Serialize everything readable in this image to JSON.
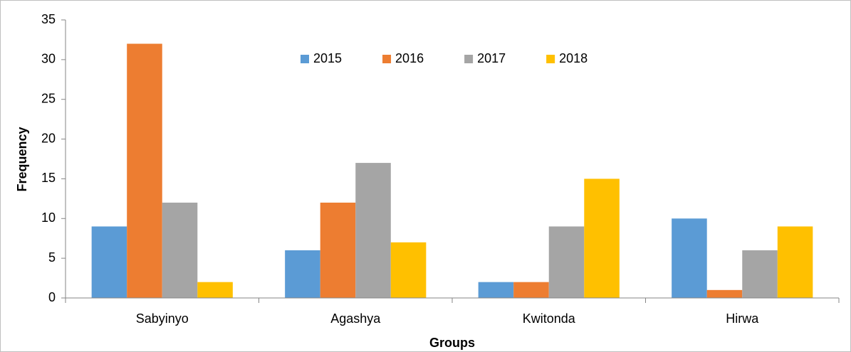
{
  "chart_data": {
    "type": "bar",
    "x_label": "Groups",
    "y_label": "Frequency",
    "categories": [
      "Sabyinyo",
      "Agashya",
      "Kwitonda",
      "Hirwa"
    ],
    "series": [
      {
        "name": "2015",
        "color": "#5b9bd5",
        "values": [
          9,
          6,
          2,
          10
        ]
      },
      {
        "name": "2016",
        "color": "#ed7d31",
        "values": [
          32,
          12,
          2,
          1
        ]
      },
      {
        "name": "2017",
        "color": "#a5a5a5",
        "values": [
          12,
          17,
          9,
          6
        ]
      },
      {
        "name": "2018",
        "color": "#ffc000",
        "values": [
          2,
          7,
          15,
          9
        ]
      }
    ],
    "ylim": [
      0,
      35
    ],
    "yticks": [
      0,
      5,
      10,
      15,
      20,
      25,
      30,
      35
    ],
    "grid": false,
    "legend": "top"
  }
}
